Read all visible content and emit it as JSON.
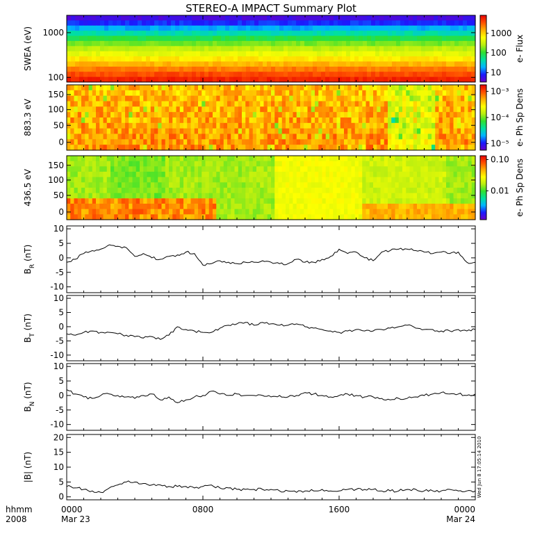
{
  "title": "STEREO-A IMPACT Summary Plot",
  "footer": {
    "left_top": "hhmm",
    "left_bottom": "2008",
    "x_ticks": [
      "0000",
      "0800",
      "1600",
      "0000"
    ],
    "x_dates": [
      "Mar 23",
      "",
      "",
      "Mar 24"
    ],
    "stamp": "Wed Jun  8 17:05:14 2010"
  },
  "colors": {
    "spectrogram_scale": [
      "#6a00c8",
      "#1a1aff",
      "#00b4ff",
      "#00e0a0",
      "#30e030",
      "#b8ee10",
      "#ffff00",
      "#ffb000",
      "#ff5000",
      "#e80000"
    ],
    "line": "#000000"
  },
  "chart_data": [
    {
      "type": "heatmap",
      "name": "swea",
      "ylabel": "SWEA (eV)",
      "yscale": "log",
      "yticks": [
        "1000",
        "100"
      ],
      "colorbar_label": "e- Flux",
      "colorbar_ticks": [
        "1000",
        "100",
        "10"
      ],
      "rows_top_to_bottom_level": [
        0.05,
        0.12,
        0.22,
        0.32,
        0.42,
        0.5,
        0.57,
        0.63,
        0.7,
        0.77,
        0.84,
        0.9,
        0.95
      ]
    },
    {
      "type": "heatmap",
      "name": "pad-883",
      "ylabel": "883.3 eV",
      "yticks": [
        "150",
        "100",
        "50",
        "0"
      ],
      "ylim": [
        0,
        180
      ],
      "colorbar_label": "e- Ph Sp Dens",
      "colorbar_ticks": [
        "10⁻³",
        "10⁻⁴",
        "10⁻⁵"
      ]
    },
    {
      "type": "heatmap",
      "name": "pad-436",
      "ylabel": "436.5 eV",
      "yticks": [
        "150",
        "100",
        "50",
        "0"
      ],
      "ylim": [
        0,
        180
      ],
      "colorbar_label": "e- Ph Sp Dens",
      "colorbar_ticks": [
        "0.10",
        "0.01"
      ]
    },
    {
      "type": "line",
      "name": "br",
      "ylabel": "B",
      "ylabel_sub": "R",
      "ylabel_unit": " (nT)",
      "ylim": [
        -12,
        11
      ],
      "yticks": [
        "10",
        "5",
        "0",
        "-5",
        "-10"
      ],
      "x": [
        0,
        0.5,
        1,
        1.5,
        2,
        2.5,
        3,
        3.5,
        4,
        4.5,
        5,
        5.5,
        6,
        6.5,
        7,
        7.5,
        8,
        8.5,
        9,
        9.5,
        10,
        10.5,
        11,
        11.5,
        12,
        12.5,
        13,
        13.5,
        14,
        14.5,
        15,
        15.5,
        16,
        16.5,
        17,
        17.5,
        18,
        18.5,
        19,
        19.5,
        20,
        20.5,
        21,
        21.5,
        22,
        22.5,
        23,
        23.5,
        24
      ],
      "values": [
        -1.5,
        -0.5,
        1.5,
        2.5,
        3,
        4.5,
        4,
        3.5,
        0.5,
        1.5,
        0,
        -0.5,
        0.5,
        1,
        2,
        1.5,
        -2.5,
        -2,
        -1,
        -1.5,
        -2,
        -1.5,
        -1.5,
        -1,
        -1.5,
        -2,
        -2,
        -0.5,
        -1.5,
        -1.5,
        -0.5,
        0.5,
        3,
        1.5,
        2,
        0,
        -1,
        2,
        2.5,
        3,
        3,
        2.5,
        2,
        1.5,
        2,
        1.5,
        2,
        -1.5,
        -1.5
      ]
    },
    {
      "type": "line",
      "name": "bt",
      "ylabel": "B",
      "ylabel_sub": "T",
      "ylabel_unit": " (nT)",
      "ylim": [
        -12,
        11
      ],
      "yticks": [
        "10",
        "5",
        "0",
        "-5",
        "-10"
      ],
      "x": [
        0,
        0.5,
        1,
        1.5,
        2,
        2.5,
        3,
        3.5,
        4,
        4.5,
        5,
        5.5,
        6,
        6.5,
        7,
        7.5,
        8,
        8.5,
        9,
        9.5,
        10,
        10.5,
        11,
        11.5,
        12,
        12.5,
        13,
        13.5,
        14,
        14.5,
        15,
        15.5,
        16,
        16.5,
        17,
        17.5,
        18,
        18.5,
        19,
        19.5,
        20,
        20.5,
        21,
        21.5,
        22,
        22.5,
        23,
        23.5,
        24
      ],
      "values": [
        -2.5,
        -3,
        -2,
        -1.5,
        -2,
        -2,
        -2.5,
        -3,
        -3.5,
        -4,
        -3.5,
        -4.5,
        -3,
        0,
        -1,
        -1.5,
        -2,
        -2,
        -0.5,
        0.5,
        1,
        1.5,
        0.5,
        1.5,
        1,
        0.5,
        0.5,
        1,
        0,
        -0.5,
        -1,
        -1.5,
        -2,
        -1.5,
        -1,
        -1.5,
        -1.5,
        -1,
        -0.5,
        0,
        0.5,
        -0.5,
        -1,
        -1,
        -1.5,
        -1.5,
        -1,
        -1.5,
        -1
      ]
    },
    {
      "type": "line",
      "name": "bn",
      "ylabel": "B",
      "ylabel_sub": "N",
      "ylabel_unit": " (nT)",
      "ylim": [
        -12,
        11
      ],
      "yticks": [
        "10",
        "5",
        "0",
        "-5",
        "-10"
      ],
      "x": [
        0,
        0.5,
        1,
        1.5,
        2,
        2.5,
        3,
        3.5,
        4,
        4.5,
        5,
        5.5,
        6,
        6.5,
        7,
        7.5,
        8,
        8.5,
        9,
        9.5,
        10,
        10.5,
        11,
        11.5,
        12,
        12.5,
        13,
        13.5,
        14,
        14.5,
        15,
        15.5,
        16,
        16.5,
        17,
        17.5,
        18,
        18.5,
        19,
        19.5,
        20,
        20.5,
        21,
        21.5,
        22,
        22.5,
        23,
        23.5,
        24
      ],
      "values": [
        2,
        0.5,
        -0.5,
        -1,
        0,
        0.5,
        0,
        -0.5,
        -1,
        0,
        0.5,
        -1.5,
        -0.5,
        -2.5,
        -1.5,
        -0.5,
        0,
        1.5,
        0.5,
        0,
        0.5,
        0,
        0,
        0,
        -0.5,
        0,
        -0.5,
        0,
        1,
        0.5,
        0,
        -0.5,
        0,
        0.5,
        0,
        -0.5,
        -0.5,
        -1,
        -1.5,
        -1,
        -1,
        -0.5,
        0,
        0.5,
        1,
        0.5,
        0.5,
        0,
        0.5
      ]
    },
    {
      "type": "line",
      "name": "bmag",
      "ylabel": "|B|",
      "ylabel_sub": "",
      "ylabel_unit": " (nT)",
      "ylim": [
        -1,
        21
      ],
      "yticks": [
        "20",
        "15",
        "10",
        "5",
        "0"
      ],
      "x": [
        0,
        0.5,
        1,
        1.5,
        2,
        2.5,
        3,
        3.5,
        4,
        4.5,
        5,
        5.5,
        6,
        6.5,
        7,
        7.5,
        8,
        8.5,
        9,
        9.5,
        10,
        10.5,
        11,
        11.5,
        12,
        12.5,
        13,
        13.5,
        14,
        14.5,
        15,
        15.5,
        16,
        16.5,
        17,
        17.5,
        18,
        18.5,
        19,
        19.5,
        20,
        20.5,
        21,
        21.5,
        22,
        22.5,
        23,
        23.5,
        24
      ],
      "values": [
        3.5,
        3,
        2.5,
        2,
        1.5,
        3,
        4,
        5,
        5,
        4.5,
        4,
        4,
        3.5,
        3.5,
        3.5,
        3,
        3.5,
        4,
        3,
        3,
        2.5,
        2.5,
        2.5,
        2.5,
        2.5,
        2,
        2,
        1.5,
        2,
        2,
        2.5,
        2,
        2,
        2.5,
        2.5,
        2.5,
        2.5,
        2,
        2,
        2,
        2.5,
        2.5,
        2,
        2,
        2,
        2.5,
        2,
        2,
        2
      ]
    }
  ]
}
